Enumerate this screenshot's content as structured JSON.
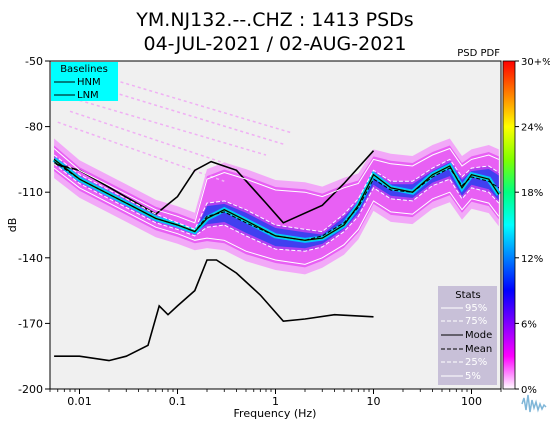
{
  "chart_data": {
    "type": "heatmap",
    "title_line1": "YM.NJ132.--.CHZ : 1413 PSDs",
    "title_line2": "04-JUL-2021 / 02-AUG-2021",
    "xlabel": "Frequency (Hz)",
    "ylabel": "dB",
    "x_scale": "log",
    "xlim": [
      0.005,
      200
    ],
    "ylim": [
      -200,
      -50
    ],
    "x_ticks": [
      0.01,
      0.1,
      1,
      10,
      100
    ],
    "x_tick_labels": [
      "0.01",
      "0.1",
      "1",
      "10",
      "100"
    ],
    "y_ticks": [
      -50,
      -80,
      -110,
      -140,
      -170,
      -200
    ],
    "y_tick_labels": [
      "-50",
      "-80",
      "-110",
      "-140",
      "-170",
      "-200"
    ],
    "colorbar": {
      "label": "PSD PDF",
      "ticks": [
        30,
        24,
        18,
        12,
        6,
        0
      ],
      "tick_labels": [
        "30+%",
        "24%",
        "18%",
        "12%",
        "6%",
        "0%"
      ],
      "colors": [
        "#ff0000",
        "#ff8000",
        "#ffff00",
        "#80ff00",
        "#00ff80",
        "#00ffff",
        "#0080ff",
        "#0000ff",
        "#8000ff",
        "#ff00ff",
        "#ffffff"
      ]
    },
    "baselines_legend": {
      "title": "Baselines",
      "items": [
        "HNM",
        "LNM"
      ],
      "background": "#00ffff"
    },
    "stats_legend": {
      "title": "Stats",
      "items": [
        "95%",
        "75%",
        "Mode",
        "Mean",
        "25%",
        "5%"
      ],
      "background": "#c8c0d8"
    },
    "series": [
      {
        "name": "HNM",
        "color": "#000000",
        "x": [
          0.0055,
          0.01,
          0.06,
          0.1,
          0.15,
          0.22,
          0.4,
          0.8,
          1.2,
          3,
          5,
          10
        ],
        "y": [
          -97,
          -100,
          -120,
          -112,
          -100,
          -96,
          -100,
          -115,
          -124,
          -116,
          -106,
          -91
        ]
      },
      {
        "name": "LNM",
        "color": "#000000",
        "x": [
          0.0055,
          0.01,
          0.02,
          0.03,
          0.05,
          0.065,
          0.08,
          0.1,
          0.15,
          0.2,
          0.25,
          0.4,
          0.7,
          1.2,
          2,
          4,
          10
        ],
        "y": [
          -185,
          -185,
          -187,
          -185,
          -180,
          -162,
          -166,
          -162,
          -155,
          -141,
          -141,
          -147,
          -157,
          -169,
          -168,
          -166,
          -167
        ]
      },
      {
        "name": "95%",
        "color": "#ffffff",
        "x": [
          0.0055,
          0.01,
          0.03,
          0.06,
          0.1,
          0.15,
          0.2,
          0.3,
          0.5,
          1,
          2,
          3,
          5,
          7,
          10,
          15,
          25,
          40,
          60,
          80,
          100,
          150,
          190
        ],
        "y": [
          -90,
          -100,
          -111,
          -118,
          -121,
          -124,
          -104,
          -101,
          -104,
          -109,
          -110,
          -112,
          -108,
          -106,
          -95,
          -97,
          -98,
          -93,
          -90,
          -98,
          -95,
          -93,
          -95
        ]
      },
      {
        "name": "75%",
        "color": "#ffffff",
        "x": [
          0.0055,
          0.01,
          0.03,
          0.06,
          0.1,
          0.15,
          0.2,
          0.3,
          0.5,
          1,
          2,
          3,
          5,
          7,
          10,
          15,
          25,
          40,
          60,
          80,
          100,
          150,
          190
        ],
        "y": [
          -93,
          -102,
          -113,
          -120,
          -124,
          -127,
          -115,
          -114,
          -118,
          -125,
          -127,
          -128,
          -120,
          -113,
          -100,
          -105,
          -105,
          -99,
          -95,
          -103,
          -99,
          -98,
          -101
        ]
      },
      {
        "name": "Mode",
        "color": "#000000",
        "x": [
          0.0055,
          0.01,
          0.03,
          0.06,
          0.1,
          0.15,
          0.2,
          0.3,
          0.5,
          1,
          2,
          3,
          5,
          7,
          10,
          15,
          25,
          40,
          60,
          80,
          100,
          150,
          190
        ],
        "y": [
          -95,
          -104,
          -115,
          -122,
          -125,
          -128,
          -122,
          -118,
          -123,
          -130,
          -132,
          -131,
          -125,
          -116,
          -102,
          -108,
          -110,
          -102,
          -98,
          -108,
          -102,
          -104,
          -111
        ]
      },
      {
        "name": "Mean",
        "color": "#000000",
        "x": [
          0.0055,
          0.01,
          0.03,
          0.06,
          0.1,
          0.15,
          0.2,
          0.3,
          0.5,
          1,
          2,
          3,
          5,
          7,
          10,
          15,
          25,
          40,
          60,
          80,
          100,
          150,
          190
        ],
        "y": [
          -96,
          -104,
          -115,
          -122,
          -125,
          -128,
          -121,
          -119,
          -124,
          -130,
          -132,
          -130,
          -124,
          -117,
          -104,
          -109,
          -110,
          -103,
          -99,
          -107,
          -103,
          -105,
          -108
        ]
      },
      {
        "name": "25%",
        "color": "#ffffff",
        "x": [
          0.0055,
          0.01,
          0.03,
          0.06,
          0.1,
          0.15,
          0.2,
          0.3,
          0.5,
          1,
          2,
          3,
          5,
          7,
          10,
          15,
          25,
          40,
          60,
          80,
          100,
          150,
          190
        ],
        "y": [
          -97,
          -106,
          -117,
          -124,
          -127,
          -130,
          -126,
          -125,
          -130,
          -136,
          -137,
          -135,
          -128,
          -121,
          -108,
          -113,
          -114,
          -107,
          -104,
          -113,
          -108,
          -110,
          -115
        ]
      },
      {
        "name": "5%",
        "color": "#ffffff",
        "x": [
          0.0055,
          0.01,
          0.03,
          0.06,
          0.1,
          0.15,
          0.2,
          0.3,
          0.5,
          1,
          2,
          3,
          5,
          7,
          10,
          15,
          25,
          40,
          60,
          80,
          100,
          150,
          190
        ],
        "y": [
          -99,
          -108,
          -119,
          -126,
          -129,
          -132,
          -131,
          -132,
          -137,
          -141,
          -143,
          -140,
          -134,
          -127,
          -114,
          -119,
          -120,
          -113,
          -110,
          -118,
          -113,
          -115,
          -121
        ]
      }
    ]
  }
}
